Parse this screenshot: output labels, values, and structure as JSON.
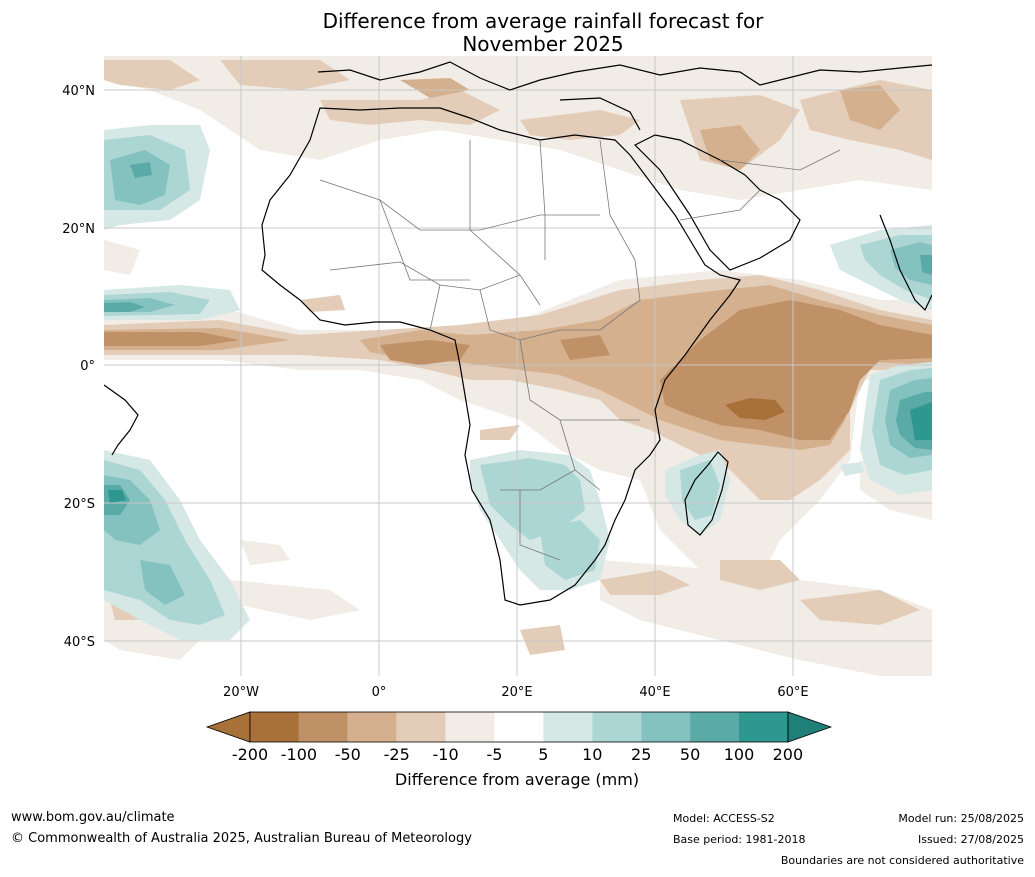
{
  "title_line1": "Difference from average rainfall forecast for",
  "title_line2": "November 2025",
  "lat_labels": [
    "40°N",
    "20°N",
    "0°",
    "20°S",
    "40°S"
  ],
  "lon_labels": [
    "20°W",
    "0°",
    "20°E",
    "40°E",
    "60°E"
  ],
  "colorbar": {
    "title": "Difference from average (mm)",
    "ticks": [
      "-200",
      "-100",
      "-50",
      "-25",
      "-10",
      "-5",
      "5",
      "10",
      "25",
      "50",
      "100",
      "200"
    ],
    "colors": [
      "#a8713a",
      "#c09066",
      "#d4b08e",
      "#e3cdb8",
      "#f1ece5",
      "#ffffff",
      "#d5e8e6",
      "#acd6d3",
      "#84c2c0",
      "#5aaaa7",
      "#2e9790",
      "#1f7f79"
    ]
  },
  "footer": {
    "website": "www.bom.gov.au/climate",
    "copyright": "© Commonwealth of Australia 2025, Australian Bureau of Meteorology",
    "model": "Model: ACCESS-S2",
    "base_period": "Base period: 1981-2018",
    "model_run": "Model run: 25/08/2025",
    "issued": "Issued: 27/08/2025",
    "disclaimer": "Boundaries are not considered authoritative"
  }
}
